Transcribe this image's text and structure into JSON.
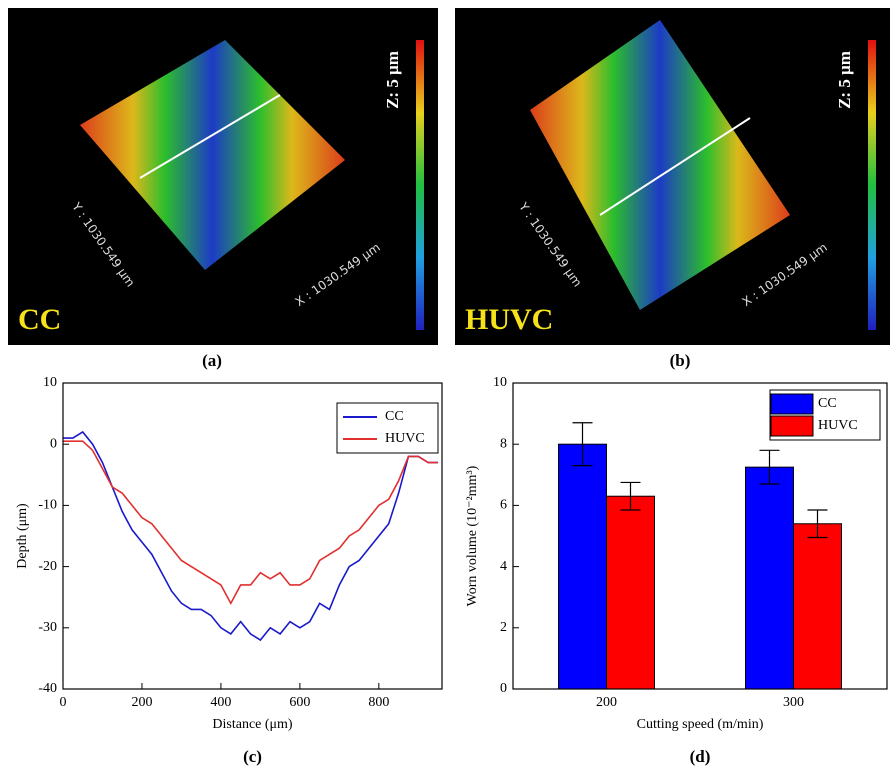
{
  "images": [
    {
      "label": "(a)",
      "caption": "CC",
      "scale": "Z: 5 μm",
      "x_axis": "X : 1030.549 μm",
      "y_axis": "Y : 1030.549 μm"
    },
    {
      "label": "(b)",
      "caption": "HUVC",
      "scale": "Z: 5 μm",
      "x_axis": "X : 1030.549 μm",
      "y_axis": "Y : 1030.549 μm"
    }
  ],
  "chart_data": [
    {
      "type": "line",
      "label": "(c)",
      "x_label": "Distance (μm)",
      "y_label": "Depth (μm)",
      "x": [
        0,
        25,
        50,
        75,
        100,
        125,
        150,
        175,
        200,
        225,
        250,
        275,
        300,
        325,
        350,
        375,
        400,
        425,
        450,
        475,
        500,
        525,
        550,
        575,
        600,
        625,
        650,
        675,
        700,
        725,
        750,
        775,
        800,
        825,
        850,
        875,
        900,
        925,
        950
      ],
      "series": [
        {
          "name": "CC",
          "color": "#1a1acc",
          "values": [
            1,
            1,
            2,
            0,
            -3,
            -7,
            -11,
            -14,
            -16,
            -18,
            -21,
            -24,
            -26,
            -27,
            -27,
            -28,
            -30,
            -31,
            -29,
            -31,
            -32,
            -30,
            -31,
            -29,
            -30,
            -29,
            -26,
            -27,
            -23,
            -20,
            -19,
            -17,
            -15,
            -13,
            -8,
            -2,
            -2,
            -3,
            -3
          ]
        },
        {
          "name": "HUVC",
          "color": "#e03030",
          "values": [
            0.5,
            0.5,
            0.5,
            -1,
            -4,
            -7,
            -8,
            -10,
            -12,
            -13,
            -15,
            -17,
            -19,
            -20,
            -21,
            -22,
            -23,
            -26,
            -23,
            -23,
            -21,
            -22,
            -21,
            -23,
            -23,
            -22,
            -19,
            -18,
            -17,
            -15,
            -14,
            -12,
            -10,
            -9,
            -6,
            -2,
            -2,
            -3,
            -3
          ]
        }
      ],
      "xlim": [
        0,
        960
      ],
      "xticks": [
        0,
        200,
        400,
        600,
        800
      ],
      "ylim": [
        -40,
        10
      ],
      "yticks": [
        -40,
        -30,
        -20,
        -10,
        0,
        10
      ]
    },
    {
      "type": "bar",
      "label": "(d)",
      "x_label": "Cutting speed (m/min)",
      "y_label": "Worn volume (10⁻²mm³)",
      "categories": [
        "200",
        "300"
      ],
      "series": [
        {
          "name": "CC",
          "color": "#0000ff",
          "values": [
            8.0,
            7.25
          ],
          "errors": [
            0.7,
            0.55
          ]
        },
        {
          "name": "HUVC",
          "color": "#ff0000",
          "values": [
            6.3,
            5.4
          ],
          "errors": [
            0.45,
            0.45
          ]
        }
      ],
      "ylim": [
        0,
        10
      ],
      "yticks": [
        0,
        2,
        4,
        6,
        8,
        10
      ]
    }
  ]
}
